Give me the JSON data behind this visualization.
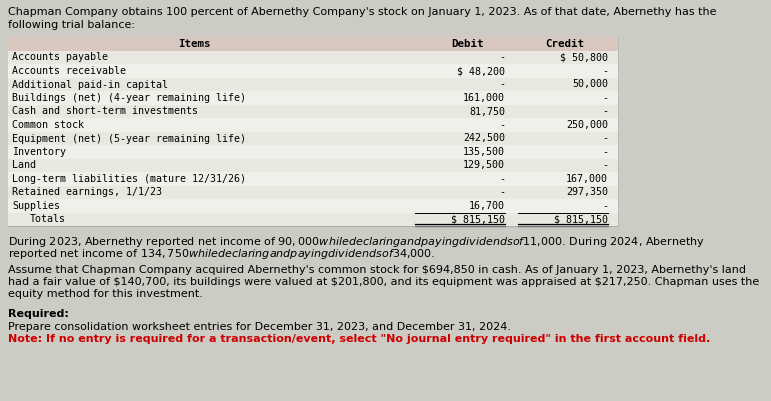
{
  "bg_color": "#cccbc4",
  "table_bg": "#f0efea",
  "table_header_bg": "#d8c8c0",
  "row_colors": [
    "#e8e7e0",
    "#f0efea"
  ],
  "header_text1": "Chapman Company obtains 100 percent of Abernethy Company's stock on January 1, 2023. As of that date, Abernethy has the",
  "header_text2": "following trial balance:",
  "table_col_headers": [
    "Items",
    "Debit",
    "Credit"
  ],
  "table_rows": [
    [
      "Accounts payable",
      "-",
      "$ 50,800"
    ],
    [
      "Accounts receivable",
      "$ 48,200",
      "-"
    ],
    [
      "Additional paid-in capital",
      "-",
      "50,000"
    ],
    [
      "Buildings (net) (4-year remaining life)",
      "161,000",
      "-"
    ],
    [
      "Cash and short-term investments",
      "81,750",
      "-"
    ],
    [
      "Common stock",
      "-",
      "250,000"
    ],
    [
      "Equipment (net) (5-year remaining life)",
      "242,500",
      "-"
    ],
    [
      "Inventory",
      "135,500",
      "-"
    ],
    [
      "Land",
      "129,500",
      "-"
    ],
    [
      "Long-term liabilities (mature 12/31/26)",
      "-",
      "167,000"
    ],
    [
      "Retained earnings, 1/1/23",
      "-",
      "297,350"
    ],
    [
      "Supplies",
      "16,700",
      "-"
    ]
  ],
  "totals_label": "Totals",
  "totals_debit": "$ 815,150",
  "totals_credit": "$ 815,150",
  "para1_line1": "During 2023, Abernethy reported net income of $90,000 while declaring and paying dividends of $11,000. During 2024, Abernethy",
  "para1_line2": "reported net income of $134,750 while declaring and paying dividends of $34,000.",
  "para2_line1": "Assume that Chapman Company acquired Abernethy's common stock for $694,850 in cash. As of January 1, 2023, Abernethy's land",
  "para2_line2": "had a fair value of $140,700, its buildings were valued at $201,800, and its equipment was appraised at $217,250. Chapman uses the",
  "para2_line3": "equity method for this investment.",
  "req_label": "Required:",
  "req_text": "Prepare consolidation worksheet entries for December 31, 2023, and December 31, 2024.",
  "note_text": "Note: If no entry is required for a transaction/event, select \"No journal entry required\" in the first account field."
}
